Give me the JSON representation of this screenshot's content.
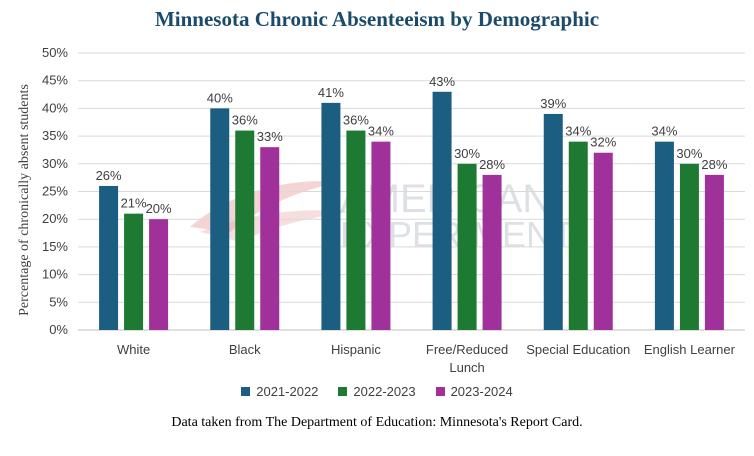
{
  "chart_data": {
    "type": "bar",
    "title": "Minnesota Chronic Absenteeism by Demographic",
    "ylabel": "Percentage of chronically absent students",
    "xlabel": "",
    "categories": [
      "White",
      "Black",
      "Hispanic",
      "Free/Reduced Lunch",
      "Special Education",
      "English Learner"
    ],
    "category_lines": [
      [
        "White"
      ],
      [
        "Black"
      ],
      [
        "Hispanic"
      ],
      [
        "Free/Reduced",
        "Lunch"
      ],
      [
        "Special Education"
      ],
      [
        "English Learner"
      ]
    ],
    "series": [
      {
        "name": "2021-2022",
        "color": "#1b5e82",
        "values": [
          26,
          40,
          41,
          43,
          39,
          34
        ]
      },
      {
        "name": "2022-2023",
        "color": "#1e7a32",
        "values": [
          21,
          36,
          36,
          30,
          34,
          30
        ]
      },
      {
        "name": "2023-2024",
        "color": "#a0309a",
        "values": [
          20,
          33,
          34,
          28,
          32,
          28
        ]
      }
    ],
    "data_labels": [
      [
        "26%",
        "40%",
        "41%",
        "43%",
        "39%",
        "34%"
      ],
      [
        "21%",
        "36%",
        "36%",
        "30%",
        "34%",
        "30%"
      ],
      [
        "20%",
        "33%",
        "34%",
        "28%",
        "32%",
        "28%"
      ]
    ],
    "ylim": [
      0,
      50
    ],
    "yticks": [
      "0%",
      "5%",
      "10%",
      "15%",
      "20%",
      "25%",
      "30%",
      "35%",
      "40%",
      "45%",
      "50%"
    ],
    "grid": true,
    "legend_position": "bottom"
  },
  "source_note": "Data taken from The Department of Education: Minnesota's Report Card.",
  "watermark": {
    "line1": "AMERICAN",
    "line2": "EXPERIMENT"
  }
}
